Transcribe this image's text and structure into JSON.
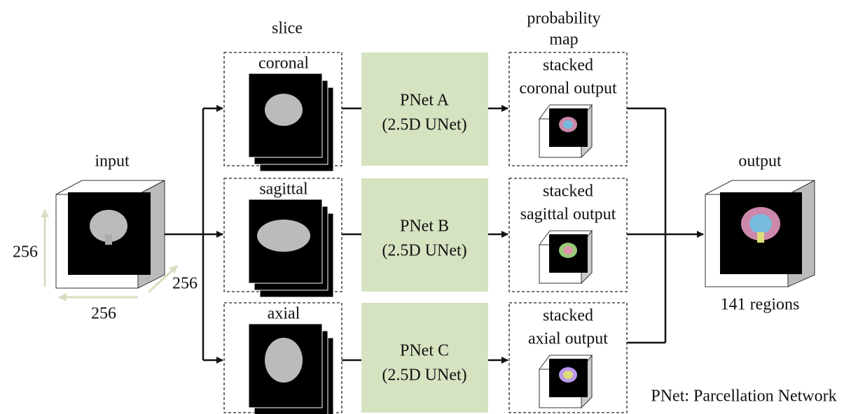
{
  "input": {
    "label": "input",
    "dims": [
      "256",
      "256",
      "256"
    ]
  },
  "slice": {
    "heading": "slice",
    "views": [
      "coronal",
      "sagittal",
      "axial"
    ]
  },
  "networks": [
    {
      "name": "PNet A",
      "model": "(2.5D UNet)"
    },
    {
      "name": "PNet B",
      "model": "(2.5D UNet)"
    },
    {
      "name": "PNet C",
      "model": "(2.5D UNet)"
    }
  ],
  "probability_map": {
    "heading": [
      "probability",
      "map"
    ],
    "outputs": [
      [
        "stacked",
        "coronal output"
      ],
      [
        "stacked",
        "sagittal output"
      ],
      [
        "stacked",
        "axial output"
      ]
    ]
  },
  "output": {
    "label": "output",
    "regions": "141 regions"
  },
  "legend": "PNet: Parcellation Network"
}
